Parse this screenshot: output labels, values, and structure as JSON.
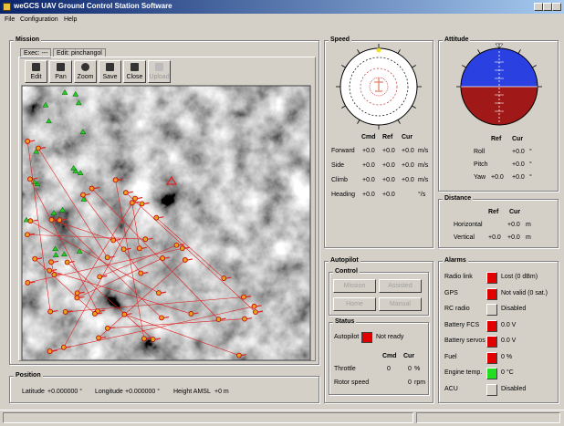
{
  "window": {
    "title": "weGCS UAV Ground Control Station Software",
    "menu": [
      "File",
      "Configuration",
      "Help"
    ]
  },
  "mission": {
    "title": "Mission",
    "tabs": [
      "Exec: ---",
      "Edit: pinchangol"
    ],
    "tools": [
      "Edit",
      "Pan",
      "Zoom",
      "Save",
      "Close",
      "Upload"
    ]
  },
  "position": {
    "title": "Position",
    "fields": [
      {
        "label": "Latitude",
        "value": "+0.000000 °"
      },
      {
        "label": "Longitude",
        "value": "+0.000000 °"
      },
      {
        "label": "Height AMSL",
        "value": "+0 m"
      }
    ]
  },
  "speed": {
    "title": "Speed",
    "columns": [
      "Cmd",
      "Ref",
      "Cur"
    ],
    "rows": [
      {
        "label": "Forward",
        "cmd": "+0.0",
        "ref": "+0.0",
        "cur": "+0.0",
        "unit": "m/s"
      },
      {
        "label": "Side",
        "cmd": "+0.0",
        "ref": "+0.0",
        "cur": "+0.0",
        "unit": "m/s"
      },
      {
        "label": "Climb",
        "cmd": "+0.0",
        "ref": "+0.0",
        "cur": "+0.0",
        "unit": "m/s"
      },
      {
        "label": "Heading",
        "cmd": "+0.0",
        "ref": "+0.0",
        "unit": "°/s"
      }
    ]
  },
  "attitude": {
    "title": "Attitude",
    "columns": [
      "Ref",
      "Cur"
    ],
    "rows": [
      {
        "label": "Roll",
        "cur": "+0.0",
        "unit": "°"
      },
      {
        "label": "Pitch",
        "cur": "+0.0",
        "unit": "°"
      },
      {
        "label": "Yaw",
        "ref": "+0.0",
        "cur": "+0.0",
        "unit": "°"
      }
    ]
  },
  "distance": {
    "title": "Distance",
    "columns": [
      "Ref",
      "Cur"
    ],
    "rows": [
      {
        "label": "Horizontal",
        "cur": "+0.0",
        "unit": "m"
      },
      {
        "label": "Vertical",
        "ref": "+0.0",
        "cur": "+0.0",
        "unit": "m"
      }
    ]
  },
  "autopilot": {
    "title": "Autopilot",
    "control": {
      "title": "Control",
      "buttons": [
        "Mission",
        "Assisted",
        "Home",
        "Manual"
      ]
    },
    "status": {
      "title": "Status",
      "label": "Autopilot",
      "state": "Not ready",
      "state_color": "#e00000",
      "columns": [
        "Cmd",
        "Cur"
      ],
      "rows": [
        {
          "label": "Throttle",
          "cmd": "0",
          "cur": "0",
          "unit": "%"
        },
        {
          "label": "Rotor speed",
          "cur": "0",
          "unit": "rpm"
        }
      ]
    }
  },
  "alarms": {
    "title": "Alarms",
    "items": [
      {
        "label": "Radio link",
        "status": "Lost (0 dBm)",
        "color": "#e00000"
      },
      {
        "label": "GPS",
        "status": "Not valid (0 sat.)",
        "color": "#e00000"
      },
      {
        "label": "RC radio",
        "status": "Disabled",
        "color": "#d4d0c8"
      },
      {
        "label": "Battery FCS",
        "status": "0.0 V",
        "color": "#e00000"
      },
      {
        "label": "Battery servos",
        "status": "0.0 V",
        "color": "#e00000"
      },
      {
        "label": "Fuel",
        "status": "0 %",
        "color": "#e00000"
      },
      {
        "label": "Engine temp.",
        "status": "0 °C",
        "color": "#22dd22"
      },
      {
        "label": "ACU",
        "status": "Disabled",
        "color": "#d4d0c8"
      }
    ]
  }
}
